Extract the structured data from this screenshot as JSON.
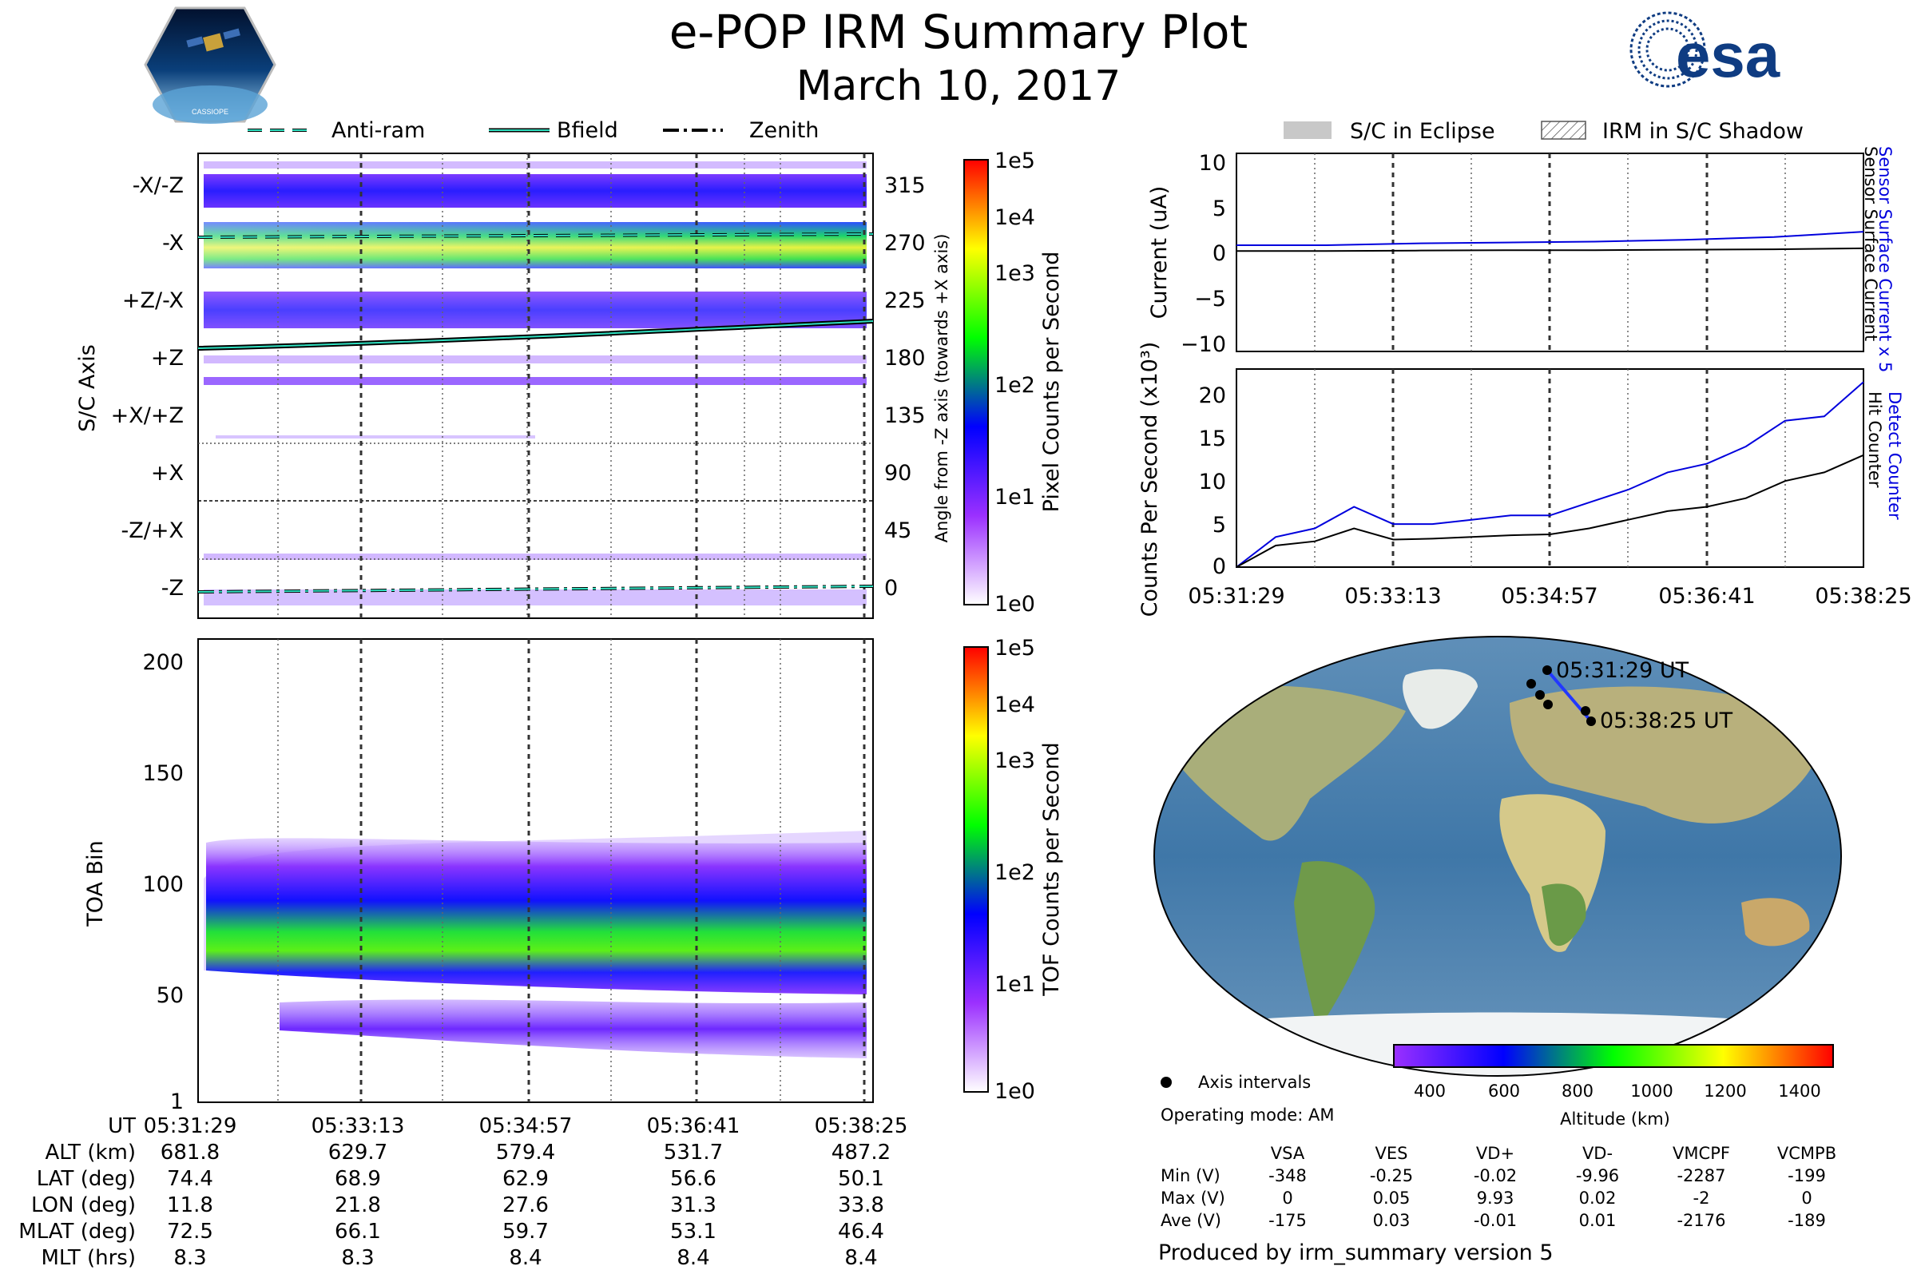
{
  "title": "e-POP IRM Summary Plot",
  "date": "March 10, 2017",
  "logos": {
    "left": "CASSIOPE",
    "right": "esa"
  },
  "chart_data": [
    {
      "type": "heatmap",
      "id": "pixel-axis",
      "ylabel": "S/C Axis",
      "y_ticks": [
        "-X/-Z",
        "-X",
        "+Z/-X",
        "+Z",
        "+X/+Z",
        "+X",
        "-Z/+X",
        "-Z"
      ],
      "y2label": "Angle from -Z axis (towards +X axis)",
      "y2_ticks": [
        "315",
        "270",
        "225",
        "180",
        "135",
        "90",
        "45",
        "0"
      ],
      "legend": [
        "Anti-ram",
        "Bfield",
        "Zenith"
      ],
      "colorbar": {
        "label": "Pixel Counts per Second",
        "ticks": [
          "1e5",
          "1e4",
          "1e3",
          "1e2",
          "1e1",
          "1e0"
        ]
      }
    },
    {
      "type": "heatmap",
      "id": "toa-bin",
      "ylabel": "TOA Bin",
      "y_ticks": [
        "200",
        "150",
        "100",
        "50",
        "1"
      ],
      "ylim": [
        1,
        210
      ],
      "colorbar": {
        "label": "TOF Counts per Second",
        "ticks": [
          "1e5",
          "1e4",
          "1e3",
          "1e2",
          "1e1",
          "1e0"
        ]
      }
    },
    {
      "type": "line",
      "id": "current",
      "ylabel": "Current (uA)",
      "ylim": [
        -11,
        11
      ],
      "y_ticks": [
        "10",
        "5",
        "0",
        "−5",
        "−10"
      ],
      "legend": [
        "S/C in Eclipse",
        "IRM in S/C Shadow"
      ],
      "series": [
        {
          "name": "Sensor Surface Current x 5",
          "color": "#0000dd",
          "values": [
            0.8,
            0.8,
            1.0,
            1.1,
            1.2,
            1.4,
            1.7,
            2.3
          ]
        },
        {
          "name": "Sensor Surface Current",
          "color": "#000000",
          "values": [
            0.15,
            0.15,
            0.2,
            0.25,
            0.25,
            0.3,
            0.35,
            0.45
          ]
        }
      ]
    },
    {
      "type": "line",
      "id": "counts",
      "ylabel": "Counts Per Second (x10³)",
      "ylim": [
        0,
        23
      ],
      "y_ticks": [
        "20",
        "15",
        "10",
        "5",
        "0"
      ],
      "x_ticks": [
        "05:31:29",
        "05:33:13",
        "05:34:57",
        "05:36:41",
        "05:38:25"
      ],
      "series": [
        {
          "name": "Detect Counter",
          "color": "#0000dd",
          "values": [
            0,
            3.5,
            4.5,
            7,
            5,
            5,
            5.5,
            6,
            6,
            7.5,
            9,
            11,
            12,
            14,
            17,
            17.5,
            21.5
          ]
        },
        {
          "name": "Hit Counter",
          "color": "#000000",
          "values": [
            0,
            2.5,
            3,
            4.5,
            3.2,
            3.3,
            3.5,
            3.7,
            3.8,
            4.5,
            5.5,
            6.5,
            7,
            8,
            10,
            11,
            13
          ]
        }
      ]
    },
    {
      "type": "map",
      "id": "orbit-map",
      "start_label": "05:31:29 UT",
      "end_label": "05:38:25 UT",
      "colorbar": {
        "label": "Altitude (km)",
        "ticks": [
          "400",
          "600",
          "800",
          "1000",
          "1200",
          "1400"
        ]
      },
      "legend": "Axis intervals"
    }
  ],
  "time_table": {
    "header": "UT",
    "times": [
      "05:31:29",
      "05:33:13",
      "05:34:57",
      "05:36:41",
      "05:38:25"
    ],
    "rows": [
      {
        "label": "ALT (km)",
        "values": [
          "681.8",
          "629.7",
          "579.4",
          "531.7",
          "487.2"
        ]
      },
      {
        "label": "LAT (deg)",
        "values": [
          "74.4",
          "68.9",
          "62.9",
          "56.6",
          "50.1"
        ]
      },
      {
        "label": "LON (deg)",
        "values": [
          "11.8",
          "21.8",
          "27.6",
          "31.3",
          "33.8"
        ]
      },
      {
        "label": "MLAT (deg)",
        "values": [
          "72.5",
          "66.1",
          "59.7",
          "53.1",
          "46.4"
        ]
      },
      {
        "label": "MLT (hrs)",
        "values": [
          "8.3",
          "8.3",
          "8.4",
          "8.4",
          "8.4"
        ]
      }
    ]
  },
  "voltage_table": {
    "operating_mode": "Operating mode: AM",
    "columns": [
      "VSA",
      "VES",
      "VD+",
      "VD-",
      "VMCPF",
      "VCMPB"
    ],
    "rows": [
      {
        "label": "Min (V)",
        "values": [
          "-348",
          "-0.25",
          "-0.02",
          "-9.96",
          "-2287",
          "-199"
        ]
      },
      {
        "label": "Max (V)",
        "values": [
          "0",
          "0.05",
          "9.93",
          "0.02",
          "-2",
          "0"
        ]
      },
      {
        "label": "Ave (V)",
        "values": [
          "-175",
          "0.03",
          "-0.01",
          "0.01",
          "-2176",
          "-189"
        ]
      }
    ]
  },
  "footer": "Produced by irm_summary version 5"
}
